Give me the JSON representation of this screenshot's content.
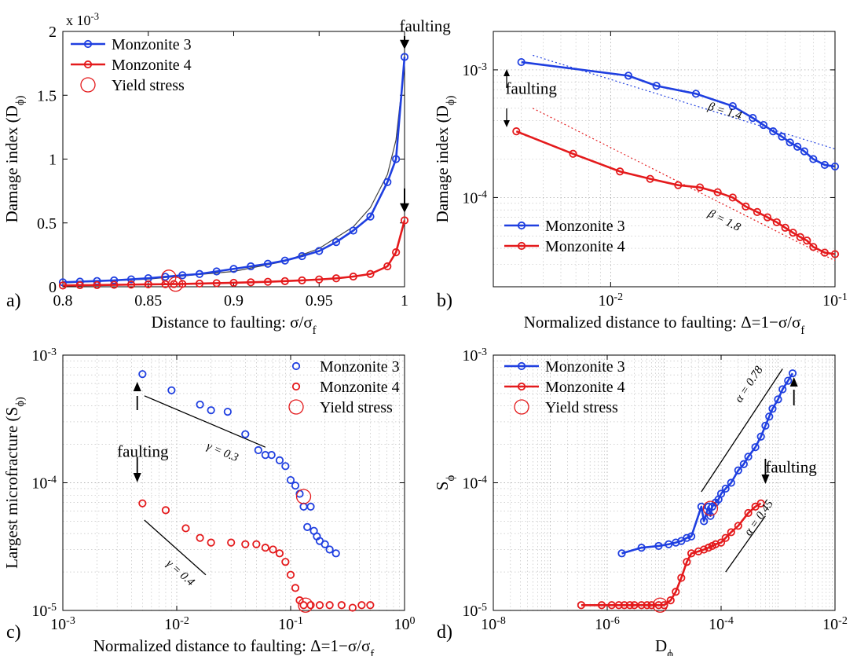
{
  "colors": {
    "series1": "#1f3fe0",
    "series2": "#e41a1c",
    "black": "#000000"
  },
  "chart_data": [
    {
      "type": "line",
      "panel_label": "a)",
      "xlabel": "Distance to faulting: σ/σ_f",
      "ylabel": "Damage index (D_ϕ)",
      "y_multiplier": "x 10^-3",
      "xscale": "linear",
      "yscale": "linear",
      "xlim": [
        0.8,
        1.0
      ],
      "ylim": [
        0,
        2
      ],
      "xticks": [
        0.8,
        0.85,
        0.9,
        0.95,
        1.0
      ],
      "xticklabels": [
        "0.8",
        "0.85",
        "0.9",
        "0.95",
        "1"
      ],
      "yticks": [
        0,
        0.5,
        1,
        1.5,
        2
      ],
      "yticklabels": [
        "0",
        "0.5",
        "1",
        "1.5",
        "2"
      ],
      "grid": false,
      "legend": [
        "Monzonite 3",
        "Monzonite 4",
        "Yield stress"
      ],
      "legend_position": "top-left",
      "annotations": [
        {
          "text": "faulting",
          "x": 0.997,
          "y": 2.0,
          "arrow_to": [
            1.0,
            1.86
          ]
        },
        {
          "text": "",
          "x": 1.0,
          "y": 0.77,
          "arrow_to": [
            1.0,
            0.58
          ]
        }
      ],
      "series": [
        {
          "name": "Monzonite 3",
          "color": "#1f3fe0",
          "x": [
            0.8,
            0.81,
            0.82,
            0.83,
            0.84,
            0.85,
            0.86,
            0.87,
            0.88,
            0.89,
            0.9,
            0.91,
            0.92,
            0.93,
            0.94,
            0.95,
            0.96,
            0.97,
            0.98,
            0.99,
            0.995,
            1.0
          ],
          "y": [
            0.035,
            0.04,
            0.045,
            0.05,
            0.058,
            0.067,
            0.078,
            0.09,
            0.1,
            0.12,
            0.14,
            0.16,
            0.18,
            0.205,
            0.24,
            0.28,
            0.35,
            0.44,
            0.55,
            0.82,
            1.0,
            1.8
          ]
        },
        {
          "name": "Monzonite 4",
          "color": "#e41a1c",
          "x": [
            0.8,
            0.81,
            0.82,
            0.83,
            0.84,
            0.85,
            0.86,
            0.865,
            0.87,
            0.88,
            0.89,
            0.9,
            0.91,
            0.92,
            0.93,
            0.94,
            0.95,
            0.96,
            0.97,
            0.98,
            0.99,
            0.995,
            1.0
          ],
          "y": [
            0.01,
            0.012,
            0.013,
            0.015,
            0.017,
            0.019,
            0.02,
            0.021,
            0.022,
            0.025,
            0.028,
            0.031,
            0.035,
            0.039,
            0.044,
            0.05,
            0.057,
            0.066,
            0.08,
            0.1,
            0.16,
            0.27,
            0.52
          ]
        }
      ],
      "fit_curve": {
        "color": "#444444",
        "x": [
          0.8,
          0.85,
          0.9,
          0.93,
          0.95,
          0.97,
          0.98,
          0.99,
          0.995,
          1.0
        ],
        "y": [
          0.03,
          0.06,
          0.12,
          0.2,
          0.3,
          0.47,
          0.62,
          0.88,
          1.15,
          1.75
        ]
      },
      "yield_points": [
        {
          "x": 0.862,
          "y": 0.075
        },
        {
          "x": 0.866,
          "y": 0.02
        }
      ]
    },
    {
      "type": "line",
      "panel_label": "b)",
      "xlabel": "Normalized distance to faulting: Δ=1−σ/σ_f",
      "ylabel": "Damage index (D_ϕ)",
      "xscale": "log",
      "yscale": "log",
      "xlim": [
        0.003,
        0.1
      ],
      "ylim": [
        2e-05,
        0.002
      ],
      "xticks": [
        0.01,
        0.1
      ],
      "xticklabels": [
        "10^-2",
        "10^-1"
      ],
      "yticks": [
        0.0001,
        0.001
      ],
      "yticklabels": [
        "10^-4",
        "10^-3"
      ],
      "grid": true,
      "legend": [
        "Monzonite 3",
        "Monzonite 4"
      ],
      "legend_position": "bottom-left",
      "annotations": [
        {
          "text": "faulting",
          "x": 0.0034,
          "y": 0.00065
        },
        {
          "text": "β = 1.4",
          "x": 0.027,
          "y": 0.00049
        },
        {
          "text": "β = 1.8",
          "x": 0.027,
          "y": 7.2e-05
        }
      ],
      "series": [
        {
          "name": "Monzonite 3",
          "color": "#1f3fe0",
          "x": [
            0.004,
            0.012,
            0.016,
            0.024,
            0.035,
            0.043,
            0.048,
            0.053,
            0.058,
            0.063,
            0.068,
            0.073,
            0.08,
            0.09,
            0.1
          ],
          "y": [
            0.00115,
            0.0009,
            0.00075,
            0.00065,
            0.00052,
            0.00042,
            0.00037,
            0.00033,
            0.0003,
            0.00027,
            0.00025,
            0.00023,
            0.0002,
            0.00018,
            0.000175
          ]
        },
        {
          "name": "Monzonite 4",
          "color": "#e41a1c",
          "x": [
            0.0038,
            0.0068,
            0.011,
            0.015,
            0.02,
            0.025,
            0.03,
            0.035,
            0.04,
            0.045,
            0.05,
            0.055,
            0.06,
            0.065,
            0.07,
            0.075,
            0.08,
            0.09,
            0.1
          ],
          "y": [
            0.00033,
            0.00022,
            0.00016,
            0.00014,
            0.000125,
            0.00012,
            0.00011,
            0.0001,
            8.5e-05,
            7.7e-05,
            7e-05,
            6.4e-05,
            5.8e-05,
            5.3e-05,
            4.9e-05,
            4.6e-05,
            4.1e-05,
            3.7e-05,
            3.6e-05
          ]
        }
      ],
      "fit_lines": [
        {
          "color": "#1f3fe0",
          "x": [
            0.0045,
            0.1
          ],
          "y": [
            0.0013,
            0.00024
          ]
        },
        {
          "color": "#e41a1c",
          "x": [
            0.0045,
            0.1
          ],
          "y": [
            0.0005,
            3.2e-05
          ]
        }
      ]
    },
    {
      "type": "scatter",
      "panel_label": "c)",
      "xlabel": "Normalized distance to faulting: Δ=1−σ/σ_f",
      "ylabel": "Largest microfracture (S_ϕ)",
      "xscale": "log",
      "yscale": "log",
      "xlim": [
        0.001,
        1
      ],
      "ylim": [
        1e-05,
        0.001
      ],
      "xticks": [
        0.001,
        0.01,
        0.1,
        1
      ],
      "xticklabels": [
        "10^-3",
        "10^-2",
        "10^-1",
        "10^0"
      ],
      "yticks": [
        1e-05,
        0.0001,
        0.001
      ],
      "yticklabels": [
        "10^-5",
        "10^-4",
        "10^-3"
      ],
      "grid": true,
      "legend": [
        "Monzonite 3",
        "Monzonite 4",
        "Yield stress"
      ],
      "legend_position": "top-right",
      "annotations": [
        {
          "text": "faulting",
          "x": 0.003,
          "y": 0.00016
        },
        {
          "text": "γ = 0.3",
          "x": 0.018,
          "y": 0.000185
        },
        {
          "text": "γ = 0.4",
          "x": 0.008,
          "y": 2.3e-05
        }
      ],
      "series": [
        {
          "name": "Monzonite 3",
          "color": "#1f3fe0",
          "x": [
            0.005,
            0.009,
            0.016,
            0.02,
            0.028,
            0.04,
            0.052,
            0.06,
            0.068,
            0.08,
            0.09,
            0.1,
            0.11,
            0.12,
            0.13,
            0.14,
            0.15,
            0.16,
            0.17,
            0.18,
            0.2,
            0.22,
            0.25
          ],
          "y": [
            0.00071,
            0.00053,
            0.00041,
            0.00037,
            0.00036,
            0.00024,
            0.00018,
            0.000165,
            0.000165,
            0.00015,
            0.000135,
            0.000105,
            9.5e-05,
            8.2e-05,
            6.5e-05,
            4.5e-05,
            6.5e-05,
            4.2e-05,
            3.8e-05,
            3.5e-05,
            3.3e-05,
            3e-05,
            2.8e-05
          ]
        },
        {
          "name": "Monzonite 4",
          "color": "#e41a1c",
          "x": [
            0.005,
            0.008,
            0.012,
            0.016,
            0.02,
            0.03,
            0.04,
            0.05,
            0.06,
            0.07,
            0.08,
            0.09,
            0.1,
            0.11,
            0.12,
            0.13,
            0.15,
            0.18,
            0.22,
            0.28,
            0.35,
            0.42,
            0.5
          ],
          "y": [
            6.9e-05,
            6.1e-05,
            4.4e-05,
            3.7e-05,
            3.4e-05,
            3.4e-05,
            3.3e-05,
            3.3e-05,
            3.1e-05,
            3e-05,
            2.8e-05,
            2.4e-05,
            1.9e-05,
            1.5e-05,
            1.2e-05,
            1.1e-05,
            1.1e-05,
            1.1e-05,
            1.1e-05,
            1.1e-05,
            1.05e-05,
            1.1e-05,
            1.1e-05
          ]
        }
      ],
      "fit_lines": [
        {
          "color": "#000000",
          "x": [
            0.0052,
            0.06
          ],
          "y": [
            0.00048,
            0.00019
          ]
        },
        {
          "color": "#000000",
          "x": [
            0.0052,
            0.018
          ],
          "y": [
            5.1e-05,
            1.9e-05
          ]
        }
      ],
      "yield_points": [
        {
          "x": 0.13,
          "y": 7.8e-05
        },
        {
          "x": 0.135,
          "y": 1.1e-05
        }
      ]
    },
    {
      "type": "line",
      "panel_label": "d)",
      "xlabel": "D_ϕ",
      "ylabel": "S_ϕ",
      "xscale": "log",
      "yscale": "log",
      "xlim": [
        1e-08,
        0.01
      ],
      "ylim": [
        1e-05,
        0.001
      ],
      "xticks": [
        1e-08,
        1e-06,
        0.0001,
        0.01
      ],
      "xticklabels": [
        "10^-8",
        "10^-6",
        "10^-4",
        "10^-2"
      ],
      "yticks": [
        1e-05,
        0.0001,
        0.001
      ],
      "yticklabels": [
        "10^-5",
        "10^-4",
        "10^-3"
      ],
      "grid": true,
      "legend": [
        "Monzonite 3",
        "Monzonite 4",
        "Yield stress"
      ],
      "legend_position": "top-left",
      "annotations": [
        {
          "text": "faulting",
          "x": 0.0006,
          "y": 0.00012
        },
        {
          "text": "α = 0.78",
          "x": 0.00022,
          "y": 0.00042
        },
        {
          "text": "α = 0.45",
          "x": 0.00032,
          "y": 3.8e-05
        }
      ],
      "series": [
        {
          "name": "Monzonite 3",
          "color": "#1f3fe0",
          "x": [
            1.8e-06,
            4e-06,
            8e-06,
            1.2e-05,
            1.6e-05,
            2e-05,
            2.5e-05,
            3e-05,
            4.5e-05,
            5e-05,
            6e-05,
            6.5e-05,
            7e-05,
            8e-05,
            9e-05,
            0.0001,
            0.00012,
            0.00015,
            0.0002,
            0.00025,
            0.0003,
            0.0004,
            0.0005,
            0.0006,
            0.0007,
            0.0008,
            0.001,
            0.0012,
            0.0015,
            0.0018
          ],
          "y": [
            2.8e-05,
            3.1e-05,
            3.2e-05,
            3.3e-05,
            3.4e-05,
            3.5e-05,
            3.7e-05,
            3.8e-05,
            6.5e-05,
            5e-05,
            6.5e-05,
            5.5e-05,
            6.5e-05,
            7e-05,
            7.4e-05,
            8.2e-05,
            9e-05,
            0.0001,
            0.000125,
            0.00014,
            0.00016,
            0.00019,
            0.00023,
            0.00028,
            0.00033,
            0.00038,
            0.00045,
            0.00054,
            0.00063,
            0.00072
          ]
        },
        {
          "name": "Monzonite 4",
          "color": "#e41a1c",
          "x": [
            3.5e-07,
            8e-07,
            1.2e-06,
            1.6e-06,
            2e-06,
            2.5e-06,
            3e-06,
            4e-06,
            5e-06,
            6e-06,
            8e-06,
            1e-05,
            1.3e-05,
            1.6e-05,
            2e-05,
            2.5e-05,
            3e-05,
            4e-05,
            5e-05,
            6e-05,
            7e-05,
            8e-05,
            0.0001,
            0.00012,
            0.00015,
            0.0002,
            0.0003,
            0.0004,
            0.0005
          ],
          "y": [
            1.1e-05,
            1.1e-05,
            1.1e-05,
            1.1e-05,
            1.1e-05,
            1.1e-05,
            1.1e-05,
            1.1e-05,
            1.1e-05,
            1.1e-05,
            1.1e-05,
            1.1e-05,
            1.2e-05,
            1.4e-05,
            1.8e-05,
            2.4e-05,
            2.8e-05,
            2.9e-05,
            3e-05,
            3.1e-05,
            3.2e-05,
            3.3e-05,
            3.4e-05,
            3.7e-05,
            4.1e-05,
            4.6e-05,
            5.8e-05,
            6.5e-05,
            6.9e-05
          ]
        }
      ],
      "fit_lines": [
        {
          "color": "#000000",
          "x": [
            4.5e-05,
            0.0012
          ],
          "y": [
            8.5e-05,
            0.00078
          ]
        },
        {
          "color": "#000000",
          "x": [
            0.00012,
            0.0006
          ],
          "y": [
            2e-05,
            5.5e-05
          ]
        }
      ],
      "yield_points": [
        {
          "x": 6.5e-05,
          "y": 6.3e-05
        },
        {
          "x": 8.5e-06,
          "y": 1.1e-05
        }
      ]
    }
  ]
}
